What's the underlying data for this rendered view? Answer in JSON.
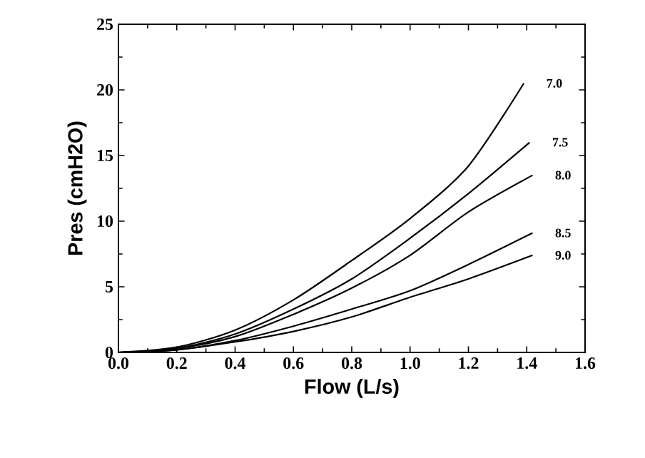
{
  "chart_data": {
    "type": "line",
    "xlabel": "Flow (L/s)",
    "ylabel": "Pres (cmH2O)",
    "xlim": [
      0,
      1.6
    ],
    "ylim": [
      0,
      25
    ],
    "xticks": [
      {
        "value": 0,
        "label": "0.0"
      },
      {
        "value": 0.2,
        "label": "0.2"
      },
      {
        "value": 0.4,
        "label": "0.4"
      },
      {
        "value": 0.6,
        "label": "0.6"
      },
      {
        "value": 0.8,
        "label": "0.8"
      },
      {
        "value": 1.0,
        "label": "1.0"
      },
      {
        "value": 1.2,
        "label": "1.2"
      },
      {
        "value": 1.4,
        "label": "1.4"
      },
      {
        "value": 1.6,
        "label": "1.6"
      }
    ],
    "yticks": [
      0,
      5,
      10,
      15,
      20,
      25
    ],
    "grid": false,
    "legend": "right",
    "marker": "none",
    "line_style": "solid",
    "series": [
      {
        "name": "7.0",
        "color": "#000000",
        "x": [
          0,
          0.2,
          0.4,
          0.6,
          0.8,
          1.0,
          1.2,
          1.39
        ],
        "values": [
          0,
          0.4,
          1.7,
          4.0,
          7.0,
          10.2,
          14.2,
          20.5
        ]
      },
      {
        "name": "7.5",
        "color": "#000000",
        "x": [
          0,
          0.2,
          0.4,
          0.6,
          0.8,
          1.0,
          1.2,
          1.41
        ],
        "values": [
          0,
          0.3,
          1.4,
          3.3,
          5.6,
          8.7,
          12.1,
          16.0
        ]
      },
      {
        "name": "8.0",
        "color": "#000000",
        "x": [
          0,
          0.2,
          0.4,
          0.6,
          0.8,
          1.0,
          1.2,
          1.42
        ],
        "values": [
          0,
          0.3,
          1.2,
          2.9,
          4.9,
          7.4,
          10.7,
          13.5
        ]
      },
      {
        "name": "8.5",
        "color": "#000000",
        "x": [
          0,
          0.2,
          0.4,
          0.6,
          0.8,
          1.0,
          1.2,
          1.42
        ],
        "values": [
          0,
          0.2,
          0.9,
          2.0,
          3.3,
          4.7,
          6.7,
          9.1
        ]
      },
      {
        "name": "9.0",
        "color": "#000000",
        "x": [
          0,
          0.2,
          0.4,
          0.6,
          0.8,
          1.0,
          1.2,
          1.42
        ],
        "values": [
          0,
          0.2,
          0.8,
          1.6,
          2.7,
          4.2,
          5.6,
          7.4
        ]
      }
    ]
  }
}
